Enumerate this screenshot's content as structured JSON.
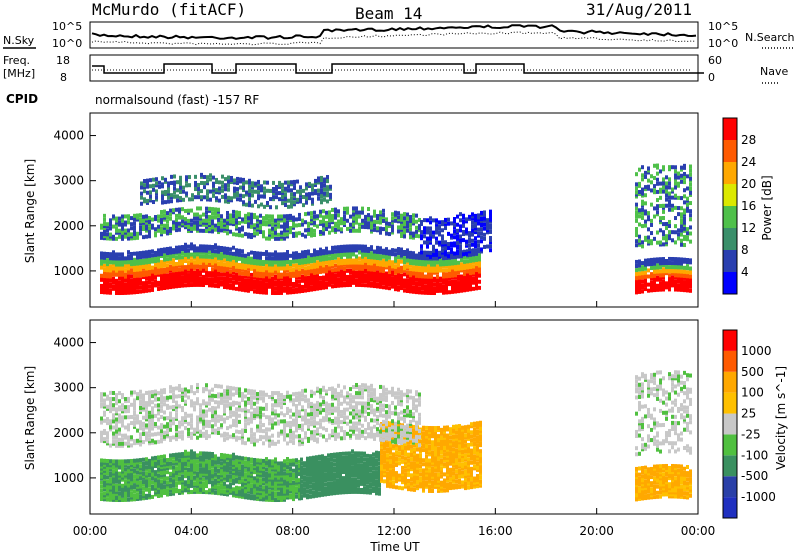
{
  "header": {
    "station": "McMurdo (fitACF)",
    "beam": "Beam 14",
    "date": "31/Aug/2011"
  },
  "sky_panel": {
    "left_label": "N.Sky",
    "right_label": "N.Search",
    "left_ticks": [
      "10^5",
      "10^0"
    ],
    "right_ticks": [
      "10^5",
      "10^0"
    ]
  },
  "freq_panel": {
    "left_label_1": "Freq.",
    "left_label_2": "[MHz]",
    "right_label": "Nave",
    "left_ticks": [
      "18",
      "8"
    ],
    "right_ticks": [
      "60",
      "0"
    ]
  },
  "cpid": {
    "label": "CPID",
    "text": "normalsound (fast) -157 RF"
  },
  "colors": {
    "power_scale": [
      "#0000ff",
      "#2a3fb0",
      "#3a8f6a",
      "#4fc04a",
      "#dce800",
      "#ffa800",
      "#ff5a00",
      "#ff0000"
    ],
    "velocity_scale": [
      "#ff0000",
      "#ff5a00",
      "#ffa800",
      "#ffc000",
      "#c8c8c8",
      "#50c040",
      "#3a9060",
      "#2a40a8",
      "#2030c0"
    ]
  },
  "chart_data": [
    {
      "type": "heatmap",
      "title": "Power",
      "xlabel": "",
      "ylabel": "Slant Range [km]",
      "x_ticks": [
        "00:00",
        "04:00",
        "08:00",
        "12:00",
        "16:00",
        "20:00",
        "00:00"
      ],
      "y_ticks": [
        "1000",
        "2000",
        "3000",
        "4000"
      ],
      "ylim": [
        200,
        4500
      ],
      "colorbar": {
        "label": "Power [dB]",
        "tick_labels": [
          "4",
          "8",
          "12",
          "16",
          "20",
          "24",
          "28"
        ],
        "range": [
          0,
          32
        ]
      }
    },
    {
      "type": "heatmap",
      "title": "Velocity",
      "xlabel": "Time UT",
      "ylabel": "Slant Range [km]",
      "x_ticks": [
        "00:00",
        "04:00",
        "08:00",
        "12:00",
        "16:00",
        "20:00",
        "00:00"
      ],
      "y_ticks": [
        "1000",
        "2000",
        "3000",
        "4000"
      ],
      "ylim": [
        200,
        4500
      ],
      "colorbar": {
        "label": "Velocity [m s^-1]",
        "tick_labels": [
          "1000",
          "500",
          "100",
          "25",
          "-25",
          "-100",
          "-500",
          "-1000"
        ]
      }
    }
  ]
}
